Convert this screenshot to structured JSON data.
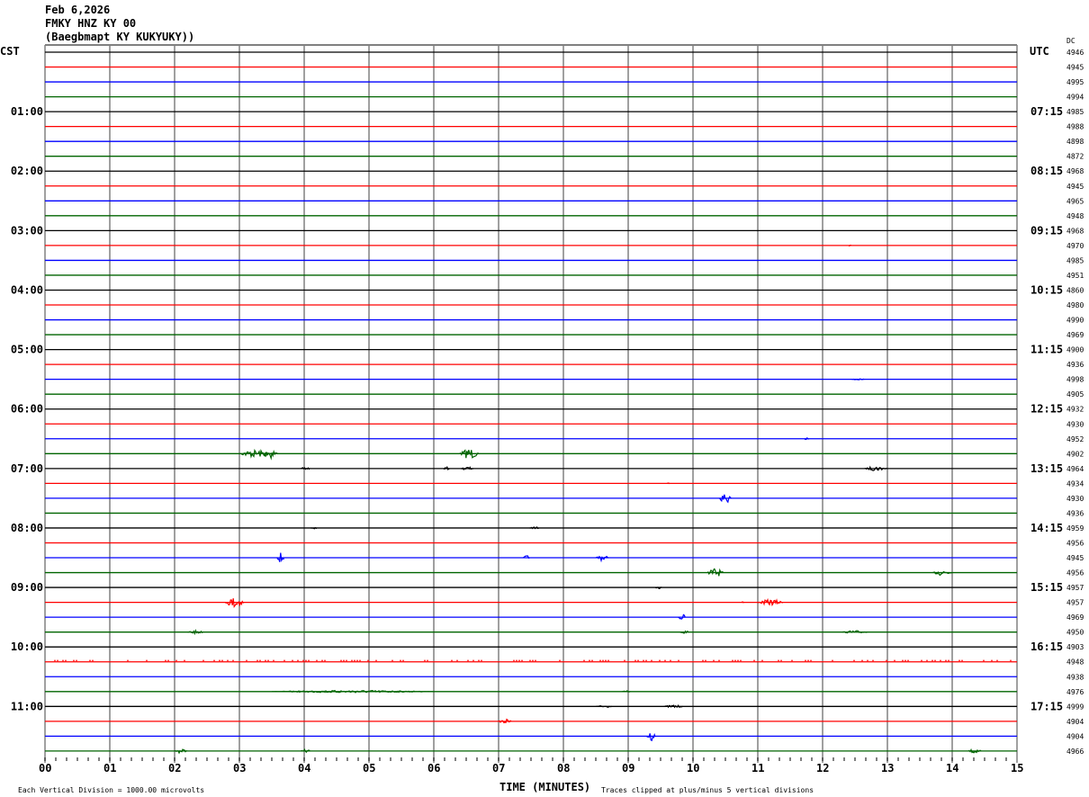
{
  "header": {
    "date": "Feb 6,2026",
    "station": "FMKY HNZ KY 00",
    "location": "(Baegbmapt KY KUKYUKY))"
  },
  "chart_data": {
    "type": "line",
    "subtype": "helicorder",
    "left_timezone": "CST",
    "right_timezone": "UTC",
    "dc_header": "DC",
    "xlabel": "TIME (MINUTES)",
    "xlim": [
      0,
      15
    ],
    "x_ticks": [
      "00",
      "01",
      "02",
      "03",
      "04",
      "05",
      "06",
      "07",
      "08",
      "09",
      "10",
      "11",
      "12",
      "13",
      "14",
      "15"
    ],
    "minutes_per_line": 15,
    "line_count": 48,
    "trace_colors": [
      "#000000",
      "#ff0000",
      "#0000ff",
      "#006400"
    ],
    "grid_color": "#808080",
    "left_hour_labels": [
      "01:00",
      "02:00",
      "03:00",
      "04:00",
      "05:00",
      "06:00",
      "07:00",
      "08:00",
      "09:00",
      "10:00",
      "11:00"
    ],
    "right_hour_labels": [
      "07:15",
      "08:15",
      "09:15",
      "10:15",
      "11:15",
      "12:15",
      "13:15",
      "14:15",
      "15:15",
      "16:15",
      "17:15"
    ],
    "dc_values": [
      "4946",
      "4945",
      "4995",
      "4994",
      "4985",
      "4988",
      "4898",
      "4872",
      "4968",
      "4945",
      "4965",
      "4948",
      "4968",
      "4970",
      "4985",
      "4951",
      "4860",
      "4980",
      "4990",
      "4969",
      "4900",
      "4936",
      "4998",
      "4905",
      "4932",
      "4930",
      "4952",
      "4902",
      "4964",
      "4934",
      "4930",
      "4936",
      "4959",
      "4956",
      "4945",
      "4956",
      "4957",
      "4957",
      "4969",
      "4950",
      "4903",
      "4948",
      "4938",
      "4976",
      "4999",
      "4904",
      "4904",
      "4966"
    ],
    "scale_note": "Each Vertical Division = 1000.00 microvolts",
    "clip_note": "Traces clipped at plus/minus 5 vertical divisions",
    "events": [
      {
        "line": 13,
        "minute": 12.4,
        "duration": 0.05,
        "amp": 0.05
      },
      {
        "line": 22,
        "minute": 12.45,
        "duration": 0.2,
        "amp": 0.06
      },
      {
        "line": 26,
        "minute": 11.72,
        "duration": 0.08,
        "amp": 0.08
      },
      {
        "line": 27,
        "minute": 3.0,
        "duration": 0.5,
        "amp": 0.25
      },
      {
        "line": 27,
        "minute": 3.35,
        "duration": 0.25,
        "amp": 0.35
      },
      {
        "line": 27,
        "minute": 6.4,
        "duration": 0.3,
        "amp": 0.35
      },
      {
        "line": 28,
        "minute": 3.95,
        "duration": 0.15,
        "amp": 0.1
      },
      {
        "line": 28,
        "minute": 6.15,
        "duration": 0.1,
        "amp": 0.1
      },
      {
        "line": 28,
        "minute": 6.42,
        "duration": 0.2,
        "amp": 0.12
      },
      {
        "line": 28,
        "minute": 12.65,
        "duration": 0.35,
        "amp": 0.15
      },
      {
        "line": 29,
        "minute": 9.6,
        "duration": 0.05,
        "amp": 0.05
      },
      {
        "line": 30,
        "minute": 10.4,
        "duration": 0.2,
        "amp": 0.35
      },
      {
        "line": 32,
        "minute": 4.1,
        "duration": 0.1,
        "amp": 0.1
      },
      {
        "line": 32,
        "minute": 7.48,
        "duration": 0.15,
        "amp": 0.1
      },
      {
        "line": 34,
        "minute": 3.58,
        "duration": 0.12,
        "amp": 0.35
      },
      {
        "line": 34,
        "minute": 7.38,
        "duration": 0.1,
        "amp": 0.15
      },
      {
        "line": 34,
        "minute": 8.5,
        "duration": 0.2,
        "amp": 0.2
      },
      {
        "line": 35,
        "minute": 10.22,
        "duration": 0.25,
        "amp": 0.3
      },
      {
        "line": 35,
        "minute": 13.7,
        "duration": 0.3,
        "amp": 0.2
      },
      {
        "line": 36,
        "minute": 9.42,
        "duration": 0.1,
        "amp": 0.08
      },
      {
        "line": 37,
        "minute": 2.78,
        "duration": 0.3,
        "amp": 0.35
      },
      {
        "line": 37,
        "minute": 10.75,
        "duration": 0.05,
        "amp": 0.08
      },
      {
        "line": 37,
        "minute": 11.0,
        "duration": 0.4,
        "amp": 0.2
      },
      {
        "line": 38,
        "minute": 9.77,
        "duration": 0.12,
        "amp": 0.25
      },
      {
        "line": 39,
        "minute": 2.2,
        "duration": 0.25,
        "amp": 0.12
      },
      {
        "line": 39,
        "minute": 9.8,
        "duration": 0.15,
        "amp": 0.1
      },
      {
        "line": 39,
        "minute": 12.3,
        "duration": 0.4,
        "amp": 0.1
      },
      {
        "line": 43,
        "minute": 3.5,
        "duration": 2.5,
        "amp": 0.08
      },
      {
        "line": 43,
        "minute": 8.9,
        "duration": 0.15,
        "amp": 0.06
      },
      {
        "line": 44,
        "minute": 8.5,
        "duration": 0.25,
        "amp": 0.08
      },
      {
        "line": 44,
        "minute": 9.55,
        "duration": 0.3,
        "amp": 0.1
      },
      {
        "line": 45,
        "minute": 7.0,
        "duration": 0.2,
        "amp": 0.15
      },
      {
        "line": 46,
        "minute": 9.28,
        "duration": 0.15,
        "amp": 0.3
      },
      {
        "line": 47,
        "minute": 2.0,
        "duration": 0.2,
        "amp": 0.15
      },
      {
        "line": 47,
        "minute": 3.95,
        "duration": 0.15,
        "amp": 0.12
      },
      {
        "line": 47,
        "minute": 14.25,
        "duration": 0.2,
        "amp": 0.15
      }
    ],
    "spiky_lines": [
      41
    ]
  }
}
